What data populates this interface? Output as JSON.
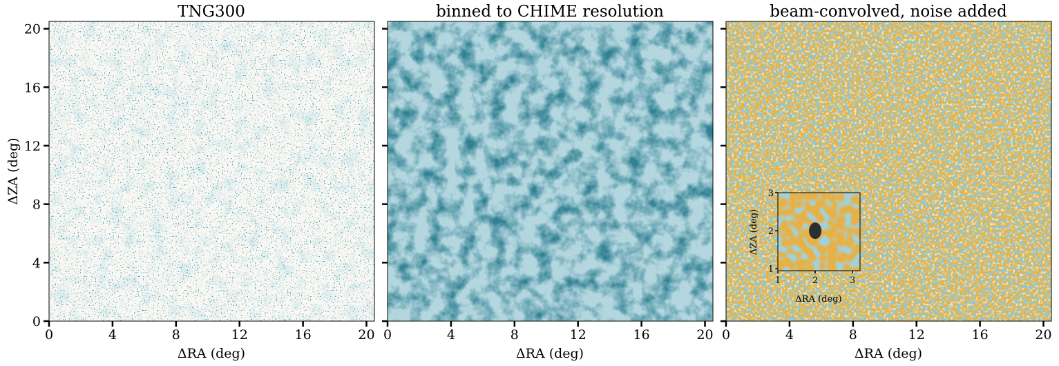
{
  "chart_data": [
    {
      "type": "heatmap",
      "title": "TNG300",
      "xlabel": "ΔRA (deg)",
      "ylabel": "ΔZA (deg)",
      "xlim": [
        0,
        20.5
      ],
      "ylim": [
        0,
        20.5
      ],
      "xticks": [
        0,
        4,
        8,
        12,
        16,
        20
      ],
      "yticks": [
        0,
        4,
        8,
        12,
        16,
        20
      ],
      "colormap": [
        "#fbf8f3",
        "#bfdfe4",
        "#4d9db3",
        "#0d4a63"
      ]
    },
    {
      "type": "heatmap",
      "title": "binned to CHIME resolution",
      "xlabel": "ΔRA (deg)",
      "ylabel": "",
      "xlim": [
        0,
        20.5
      ],
      "ylim": [
        0,
        20.5
      ],
      "xticks": [
        0,
        4,
        8,
        12,
        16,
        20
      ],
      "yticks": [
        0,
        4,
        8,
        12,
        16,
        20
      ],
      "colormap": [
        "#eef6f7",
        "#a6d1dc",
        "#5ea7bb",
        "#226e88",
        "#0c3546"
      ]
    },
    {
      "type": "heatmap",
      "title": "beam-convolved, noise added",
      "xlabel": "ΔRA (deg)",
      "ylabel": "",
      "xlim": [
        0,
        20.5
      ],
      "ylim": [
        0,
        20.5
      ],
      "xticks": [
        0,
        4,
        8,
        12,
        16,
        20
      ],
      "yticks": [
        0,
        4,
        8,
        12,
        16,
        20
      ],
      "colormap": [
        "#3f97b2",
        "#7db9c6",
        "#d8d3b4",
        "#eebc55",
        "#eba830"
      ],
      "inset": {
        "xlabel": "ΔRA (deg)",
        "ylabel": "ΔZA (deg)",
        "xlim": [
          1,
          3.2
        ],
        "ylim": [
          0.95,
          3
        ],
        "xticks": [
          1,
          2,
          3
        ],
        "yticks": [
          1,
          2,
          3
        ],
        "beam_center": [
          2,
          2
        ],
        "beam_color": "#2b2f33"
      }
    }
  ]
}
